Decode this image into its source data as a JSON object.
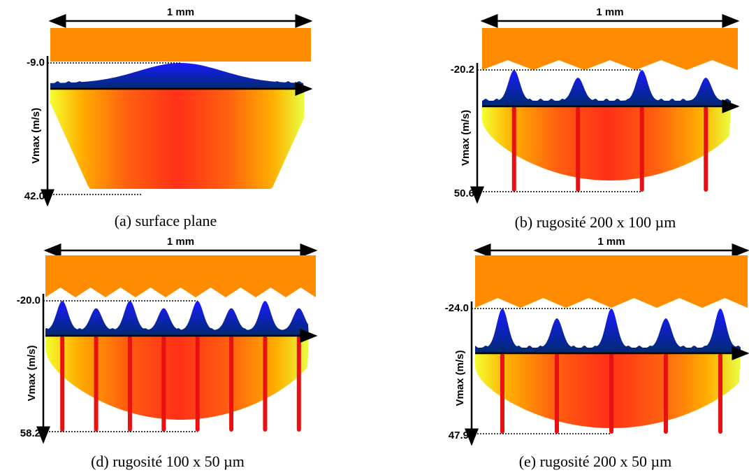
{
  "panels": [
    {
      "scale": "1 mm",
      "axis_label": "Vmax (m/s)",
      "top_value": "-9.0",
      "bottom_value": "42.0",
      "caption": "(a) surface plane"
    },
    {
      "scale": "1 mm",
      "axis_label": "Vmax (m/s)",
      "top_value": "-20.2",
      "bottom_value": "50.6",
      "caption": "(b) rugosité 200 x 100 µm"
    },
    {
      "scale": "1 mm",
      "axis_label": "Vmax (m/s)",
      "top_value": "-20.0",
      "bottom_value": "58.2",
      "caption": "(d) rugosité 100 x 50 µm"
    },
    {
      "scale": "1 mm",
      "axis_label": "Vmax (m/s)",
      "top_value": "-24.0",
      "bottom_value": "47.9",
      "caption": "(e) rugosité 200 x 50 µm"
    }
  ]
}
